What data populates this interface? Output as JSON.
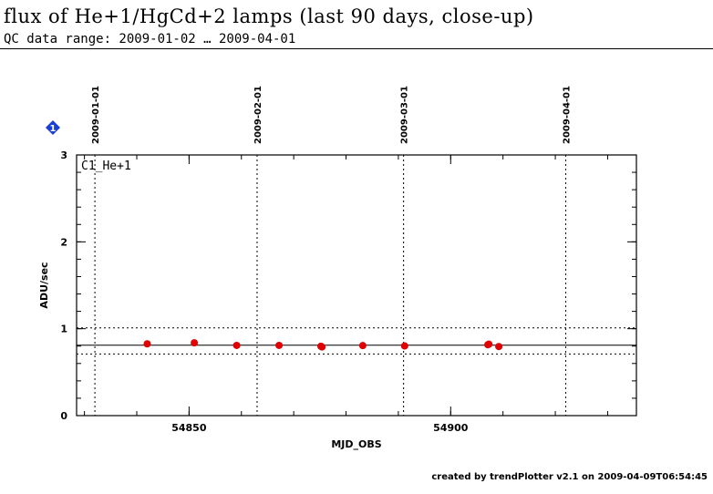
{
  "header": {
    "title": "flux of He+1/HgCd+2 lamps (last 90 days, close-up)",
    "subtitle": "QC data range: 2009-01-02 … 2009-04-01"
  },
  "footer": {
    "credit": "created by trendPlotter v2.1 on 2009-04-09T06:54:45"
  },
  "badge": {
    "label": "1",
    "color": "#1a3fd6",
    "icon": "diamond-icon"
  },
  "chart_data": {
    "type": "scatter",
    "panel_label": "C1_He+1",
    "xlabel": "MJD_OBS",
    "ylabel": "ADU/sec",
    "xlim": [
      54828.5,
      54935.5
    ],
    "ylim": [
      0,
      3
    ],
    "x_ticks": [
      54850,
      54900
    ],
    "y_ticks": [
      0,
      1,
      2,
      3
    ],
    "date_markers": [
      {
        "label": "2009-01-01",
        "x": 54832
      },
      {
        "label": "2009-02-01",
        "x": 54863
      },
      {
        "label": "2009-03-01",
        "x": 54891
      },
      {
        "label": "2009-04-01",
        "x": 54922
      }
    ],
    "reference_line": 0.81,
    "threshold_lines": [
      0.71,
      1.01
    ],
    "marker_color": "#e00000",
    "points": [
      {
        "x": 54842.0,
        "y": 0.826
      },
      {
        "x": 54851.0,
        "y": 0.838
      },
      {
        "x": 54859.1,
        "y": 0.808
      },
      {
        "x": 54867.2,
        "y": 0.808
      },
      {
        "x": 54875.2,
        "y": 0.798
      },
      {
        "x": 54875.4,
        "y": 0.79
      },
      {
        "x": 54883.2,
        "y": 0.806
      },
      {
        "x": 54891.2,
        "y": 0.802
      },
      {
        "x": 54907.1,
        "y": 0.816
      },
      {
        "x": 54907.3,
        "y": 0.822
      },
      {
        "x": 54909.2,
        "y": 0.795
      }
    ]
  }
}
